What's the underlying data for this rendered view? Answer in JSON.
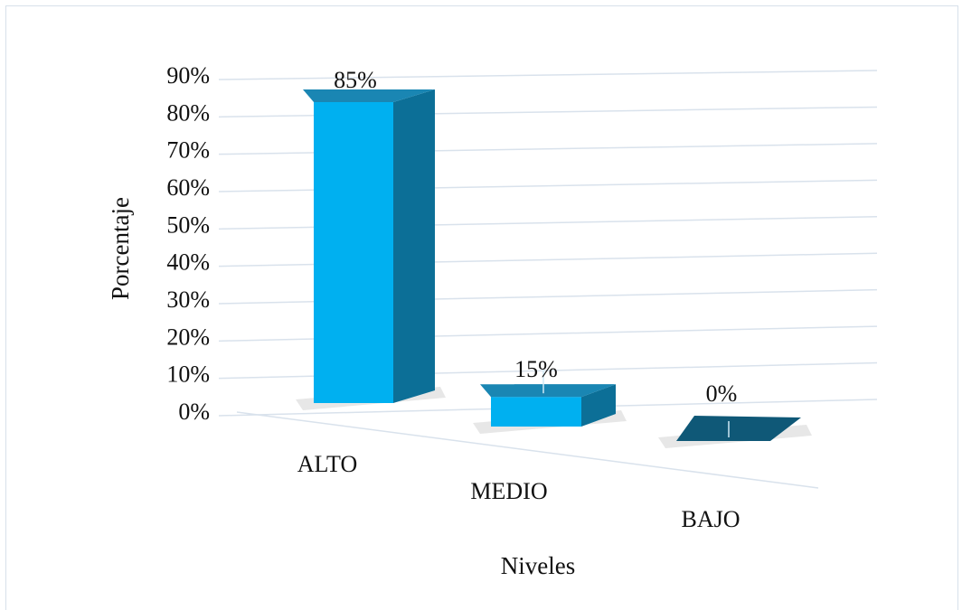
{
  "chart_data": {
    "type": "bar",
    "title": "",
    "categories": [
      "ALTO",
      "MEDIO",
      "BAJO"
    ],
    "values": [
      85,
      15,
      0
    ],
    "data_labels": [
      "85%",
      "15%",
      "0%"
    ],
    "xlabel": "Niveles",
    "ylabel": "Porcentaje",
    "ylim": [
      0,
      90
    ],
    "yticks": [
      0,
      10,
      20,
      30,
      40,
      50,
      60,
      70,
      80,
      90
    ],
    "ytick_labels": [
      "0%",
      "10%",
      "20%",
      "30%",
      "40%",
      "50%",
      "60%",
      "70%",
      "80%",
      "90%"
    ],
    "grid": true,
    "legend": "none",
    "style": "3d-column",
    "colors": {
      "front": "#00b0f0",
      "side": "#0c6f97",
      "top": "#1a86b3",
      "top_empty": "#0f5877",
      "grid": "#d9e2ec",
      "floor_shadow": "#e7e7e7"
    }
  }
}
